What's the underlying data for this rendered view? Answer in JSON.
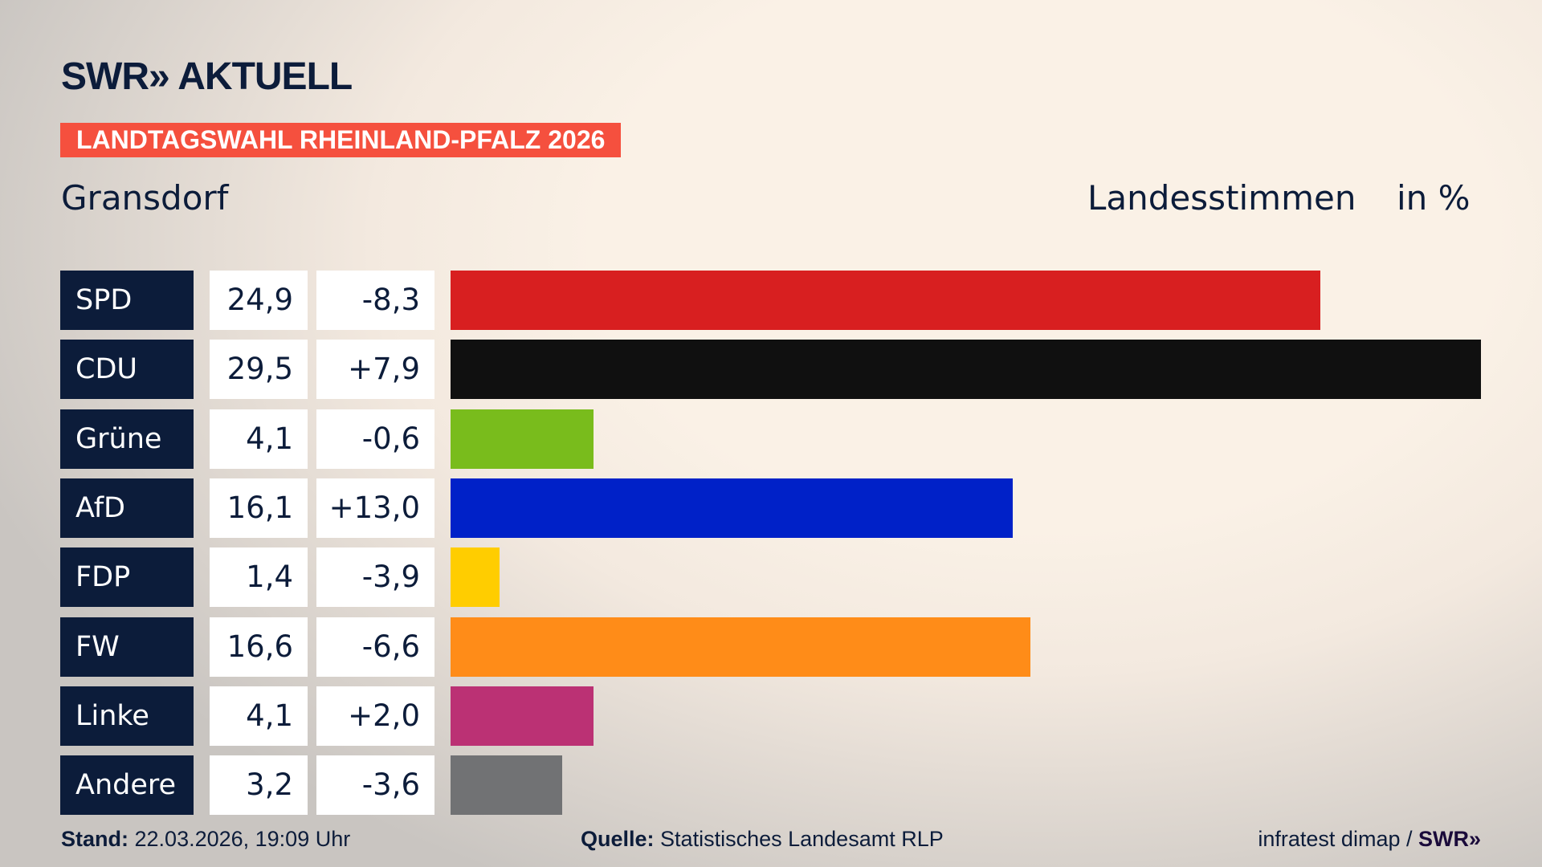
{
  "header": {
    "logo": "SWR» AKTUELL",
    "banner": "LANDTAGSWAHL RHEINLAND-PFALZ 2026",
    "place": "Gransdorf",
    "label": "Landesstimmen",
    "unit": "in %"
  },
  "chart_data": {
    "type": "bar",
    "title": "Landesstimmen",
    "unit": "in %",
    "xlim": [
      0,
      29.5
    ],
    "categories": [
      "SPD",
      "CDU",
      "Grüne",
      "AfD",
      "FDP",
      "FW",
      "Linke",
      "Andere"
    ],
    "values": [
      24.9,
      29.5,
      4.1,
      16.1,
      1.4,
      16.6,
      4.1,
      3.2
    ],
    "value_labels": [
      "24,9",
      "29,5",
      "4,1",
      "16,1",
      "1,4",
      "16,6",
      "4,1",
      "3,2"
    ],
    "diff_labels": [
      "-8,3",
      "+7,9",
      "-0,6",
      "+13,0",
      "-3,9",
      "-6,6",
      "+2,0",
      "-3,6"
    ],
    "colors": [
      "#d81f20",
      "#101010",
      "#79bc1c",
      "#0021c8",
      "#ffcd00",
      "#ff8c18",
      "#bb3174",
      "#717274"
    ]
  },
  "footer": {
    "stand_label": "Stand:",
    "stand": "22.03.2026, 19:09 Uhr",
    "source_label": "Quelle:",
    "source": "Statistisches Landesamt RLP",
    "credit": "infratest dimap / ",
    "credit_logo": "SWR»"
  }
}
